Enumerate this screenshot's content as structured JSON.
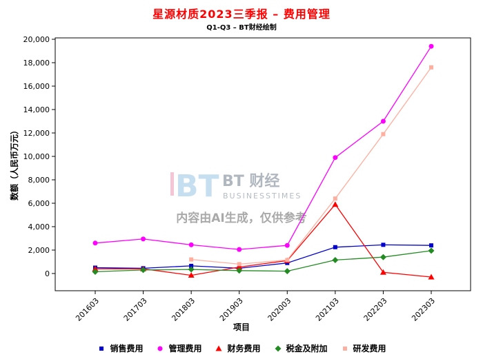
{
  "watermark": {
    "logo_bt": "BT",
    "brand": "BT 财经",
    "brand_sub": "BUSINESSTIMES",
    "disclaimer": "内容由AI生成，仅供参考"
  },
  "chart_data": {
    "type": "line",
    "title": "星源材质2023三季报 – 费用管理",
    "subtitle": "Q1-Q3 – BT财经绘制",
    "xlabel": "项目",
    "ylabel": "数额（人民币万元）",
    "ylim": [
      -1500,
      20200
    ],
    "yticks": [
      0,
      2000,
      4000,
      6000,
      8000,
      10000,
      12000,
      14000,
      16000,
      18000,
      20000
    ],
    "grid": false,
    "legend_position": "bottom",
    "categories": [
      "201603",
      "201703",
      "201803",
      "201903",
      "202003",
      "202103",
      "202203",
      "202303"
    ],
    "series": [
      {
        "name": "销售费用",
        "color": "#0000CD",
        "marker": "square",
        "values": [
          500,
          450,
          650,
          450,
          900,
          2250,
          2450,
          2400
        ]
      },
      {
        "name": "管理费用",
        "color": "#FF00FF",
        "marker": "circle",
        "values": [
          2600,
          2950,
          2450,
          2050,
          2400,
          9900,
          13000,
          19400
        ]
      },
      {
        "name": "财务费用",
        "color": "#FF0000",
        "marker": "triangle",
        "values": [
          400,
          400,
          -150,
          550,
          1100,
          5900,
          100,
          -300
        ]
      },
      {
        "name": "税金及附加",
        "color": "#228B22",
        "marker": "diamond",
        "values": [
          150,
          300,
          350,
          250,
          200,
          1150,
          1400,
          1950
        ]
      },
      {
        "name": "研发费用",
        "color": "#FFAFA0",
        "marker": "square",
        "values": [
          null,
          null,
          1200,
          800,
          1150,
          6400,
          11900,
          17600
        ]
      }
    ]
  }
}
